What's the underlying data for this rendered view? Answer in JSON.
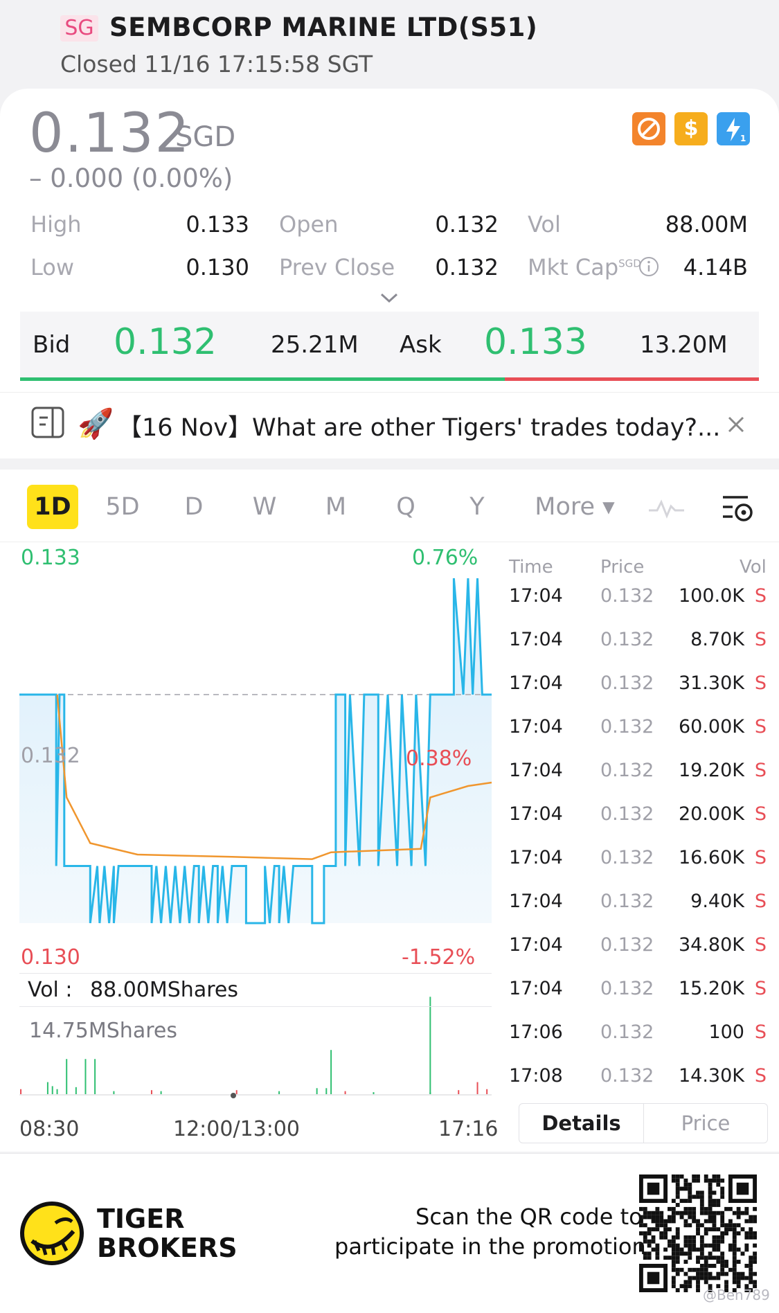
{
  "header": {
    "market_badge": "SG",
    "title": "SEMBCORP MARINE LTD(S51)",
    "status": "Closed 11/16 17:15:58 SGT"
  },
  "quote": {
    "price": "0.132",
    "currency": "SGD",
    "change": "– 0.000 (0.00%)",
    "badges": [
      "no-shorting-icon",
      "dollar-icon",
      "lightning-icon"
    ],
    "stats": {
      "high_label": "High",
      "high": "0.133",
      "low_label": "Low",
      "low": "0.130",
      "open_label": "Open",
      "open": "0.132",
      "prev_close_label": "Prev Close",
      "prev_close": "0.132",
      "vol_label": "Vol",
      "vol": "88.00M",
      "mkt_cap_label": "Mkt Cap",
      "mkt_cap_currency": "SGD",
      "mkt_cap": "4.14B"
    }
  },
  "bidask": {
    "bid_label": "Bid",
    "bid_price": "0.132",
    "bid_size": "25.21M",
    "ask_label": "Ask",
    "ask_price": "0.133",
    "ask_size": "13.20M",
    "bid_share": 0.656
  },
  "news": {
    "emoji": "🚀",
    "text": "【16 Nov】What are other Tigers' trades today?..."
  },
  "tabs": [
    {
      "label": "1D",
      "active": true
    },
    {
      "label": "5D"
    },
    {
      "label": "D"
    },
    {
      "label": "W"
    },
    {
      "label": "M"
    },
    {
      "label": "Q"
    },
    {
      "label": "Y"
    },
    {
      "label": "More ▾"
    }
  ],
  "chart": {
    "y_high": "0.133",
    "y_mid": "0.132",
    "y_low": "0.130",
    "pct_high": "0.76%",
    "pct_mid": "0.38%",
    "pct_low": "-1.52%",
    "vol_label": "Vol :",
    "vol_value": "88.00MShares",
    "vol_max": "14.75MShares",
    "x_start": "08:30",
    "x_mid": "12:00/13:00",
    "x_end": "17:16",
    "colors": {
      "price": "#29b6e8",
      "avg": "#f0962e",
      "up": "#2fbf71",
      "down": "#e84e56"
    }
  },
  "trades": {
    "headers": {
      "time": "Time",
      "price": "Price",
      "vol": "Vol"
    },
    "rows": [
      {
        "time": "17:04",
        "price": "0.132",
        "vol": "100.0K",
        "side": "S"
      },
      {
        "time": "17:04",
        "price": "0.132",
        "vol": "8.70K",
        "side": "S"
      },
      {
        "time": "17:04",
        "price": "0.132",
        "vol": "31.30K",
        "side": "S"
      },
      {
        "time": "17:04",
        "price": "0.132",
        "vol": "60.00K",
        "side": "S"
      },
      {
        "time": "17:04",
        "price": "0.132",
        "vol": "19.20K",
        "side": "S"
      },
      {
        "time": "17:04",
        "price": "0.132",
        "vol": "20.00K",
        "side": "S"
      },
      {
        "time": "17:04",
        "price": "0.132",
        "vol": "16.60K",
        "side": "S"
      },
      {
        "time": "17:04",
        "price": "0.132",
        "vol": "9.40K",
        "side": "S"
      },
      {
        "time": "17:04",
        "price": "0.132",
        "vol": "34.80K",
        "side": "S"
      },
      {
        "time": "17:04",
        "price": "0.132",
        "vol": "15.20K",
        "side": "S"
      },
      {
        "time": "17:06",
        "price": "0.132",
        "vol": "100",
        "side": "S"
      },
      {
        "time": "17:08",
        "price": "0.132",
        "vol": "14.30K",
        "side": "S"
      }
    ],
    "tab_details": "Details",
    "tab_price": "Price"
  },
  "footer": {
    "brand_line1": "TIGER",
    "brand_line2": "BROKERS",
    "promo_line1": "Scan the QR code to",
    "promo_line2": "participate in the promotion",
    "watermark": "@Ben789"
  }
}
